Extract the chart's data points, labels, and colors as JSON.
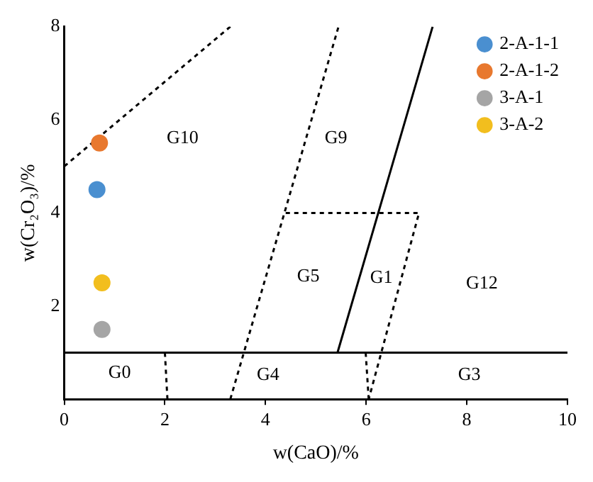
{
  "chart_data": {
    "type": "scatter",
    "xlabel": "w(CaO)/%",
    "ylabel": "w(Cr₂O₃)/%",
    "xlim": [
      0,
      10
    ],
    "ylim": [
      0,
      8
    ],
    "xticks": [
      0,
      2,
      4,
      6,
      8,
      10
    ],
    "yticks": [
      {
        "value": 0,
        "label": null
      },
      2,
      4,
      6,
      8
    ],
    "grid": false,
    "legend": "top right",
    "marker": "circle",
    "series": [
      {
        "name": "2-A-1-1",
        "color": "#4a8fd0",
        "x": [
          0.65
        ],
        "values": [
          4.5
        ]
      },
      {
        "name": "2-A-1-2",
        "color": "#e8782e",
        "x": [
          0.7
        ],
        "values": [
          5.5
        ]
      },
      {
        "name": "3-A-1",
        "color": "#a5a5a5",
        "x": [
          0.75
        ],
        "values": [
          1.5
        ]
      },
      {
        "name": "3-A-2",
        "color": "#f2be1e",
        "x": [
          0.75
        ],
        "values": [
          2.5
        ]
      },
      {
        "type": "line",
        "color": "#000000",
        "line_style": "dashed",
        "marker": "none",
        "x": [
          0,
          3.3
        ],
        "values": [
          5,
          8
        ]
      },
      {
        "type": "line",
        "color": "#000000",
        "line_style": "solid",
        "marker": "none",
        "x": [
          0,
          10
        ],
        "values": [
          1,
          1
        ]
      },
      {
        "type": "line",
        "color": "#000000",
        "line_style": "dashed",
        "marker": "none",
        "x": [
          2,
          2.05
        ],
        "values": [
          1,
          0
        ]
      },
      {
        "type": "line",
        "color": "#000000",
        "line_style": "dashed",
        "marker": "none",
        "x": [
          3.3,
          5.45
        ],
        "values": [
          0,
          8
        ]
      },
      {
        "type": "line",
        "color": "#000000",
        "line_style": "dashed",
        "marker": "none",
        "x": [
          4.4,
          7.05,
          6.3,
          6.05
        ],
        "values": [
          4,
          4,
          1,
          0
        ]
      },
      {
        "type": "line",
        "color": "#000000",
        "line_style": "dashed",
        "marker": "none",
        "x": [
          5.99,
          6.05
        ],
        "values": [
          1,
          0
        ]
      },
      {
        "type": "line",
        "color": "#000000",
        "line_style": "solid",
        "marker": "none",
        "x": [
          5.43,
          7.32
        ],
        "values": [
          1,
          8
        ]
      }
    ],
    "annotations": [
      "G10",
      "G9",
      "G5",
      "G1",
      "G12",
      "G0",
      "G4",
      "G3"
    ]
  }
}
